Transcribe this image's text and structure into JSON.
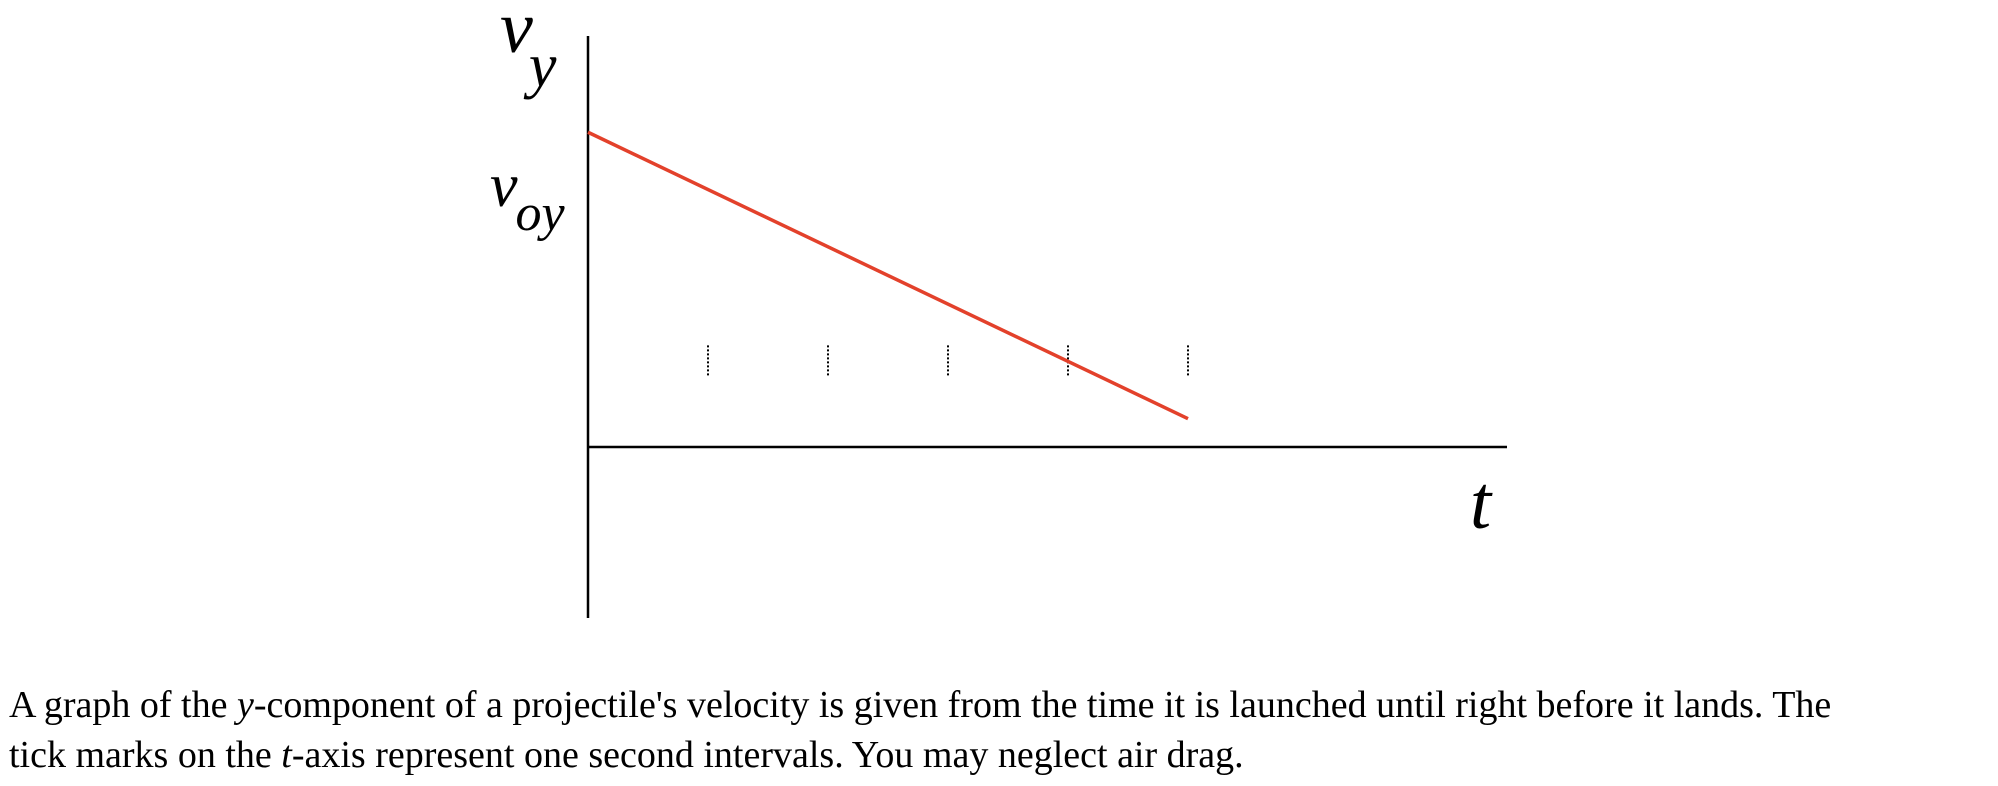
{
  "chart_data": {
    "type": "line",
    "y_axis_label": "v",
    "y_axis_label_subscript": "y",
    "x_axis_label": "t",
    "y_intercept_label": "v",
    "y_intercept_label_subscript": "oy",
    "x_tick_spacing": "1 s",
    "x_ticks": [
      1,
      2,
      3,
      4,
      5
    ],
    "xlim": [
      0,
      6
    ],
    "ylim": [
      -1.12,
      1.42
    ],
    "grid": false,
    "series": [
      {
        "color": "#e3412b",
        "points": [
          [
            0,
            1
          ],
          [
            5,
            -0.25
          ]
        ]
      }
    ]
  },
  "caption": {
    "line1_part1": "A graph of the ",
    "line1_var": "y",
    "line1_part2": "-component of a projectile's velocity is given from the time it is launched until right before it lands. The",
    "line2_part1": "tick marks on the ",
    "line2_var": "t",
    "line2_part2": "-axis represent one second intervals. You may neglect air drag."
  }
}
